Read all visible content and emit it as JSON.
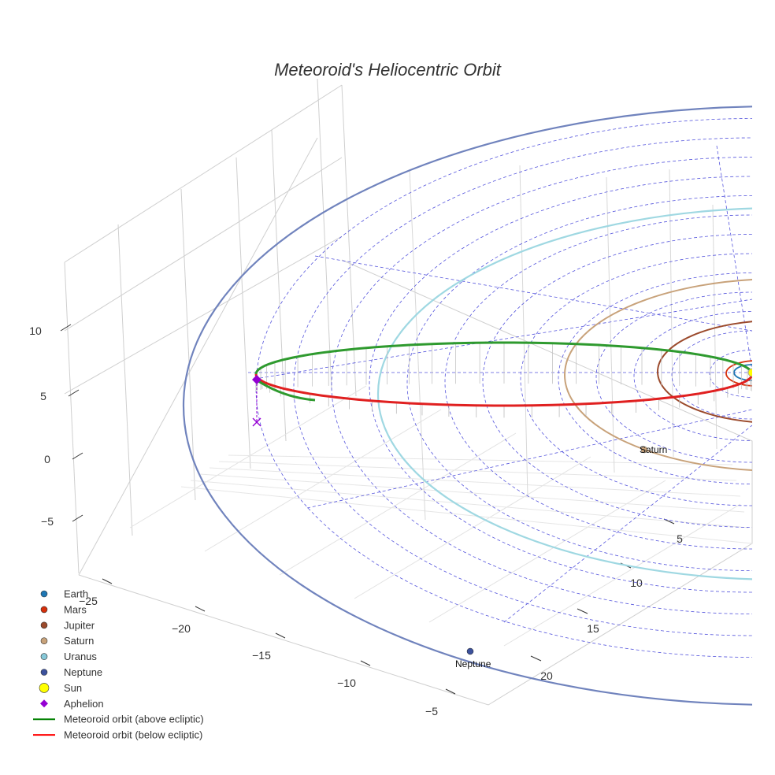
{
  "chart_data": {
    "type": "line",
    "title": "Meteoroid's Heliocentric Orbit",
    "axes": {
      "x": {
        "ticks": [
          -25,
          -20,
          -15,
          -10,
          -5
        ]
      },
      "y": {
        "ticks": [
          5,
          10,
          15,
          20
        ]
      },
      "z": {
        "ticks": [
          10,
          5,
          0,
          -5
        ]
      }
    },
    "grid": true,
    "legend_placement": "bottom-left",
    "legend": [
      {
        "label": "Earth",
        "marker": "circle",
        "color": "#1f77b4"
      },
      {
        "label": "Mars",
        "marker": "circle",
        "color": "#d62f0b"
      },
      {
        "label": "Jupiter",
        "marker": "circle",
        "color": "#9b4a2c"
      },
      {
        "label": "Saturn",
        "marker": "circle",
        "color": "#c8a27a"
      },
      {
        "label": "Uranus",
        "marker": "circle",
        "color": "#86c8d8"
      },
      {
        "label": "Neptune",
        "marker": "circle",
        "color": "#3c519c"
      },
      {
        "label": "Sun",
        "marker": "circle",
        "color": "#ffff00"
      },
      {
        "label": "Aphelion",
        "marker": "diamond",
        "color": "#9400d3"
      },
      {
        "label": "Meteoroid orbit (above ecliptic)",
        "marker": "line",
        "color": "#008000"
      },
      {
        "label": "Meteoroid orbit (below ecliptic)",
        "marker": "line",
        "color": "#ff0000"
      }
    ],
    "annotations": [
      {
        "text": "Saturn"
      },
      {
        "text": "Neptune"
      }
    ],
    "colors": {
      "earth": "#1f77b4",
      "mars": "#d62f0b",
      "jupiter": "#9b4a2c",
      "saturn": "#c8a27a",
      "uranus": "#9fd8e2",
      "neptune": "#7083bd",
      "sun": "#ffff00",
      "aphelion": "#9400d3",
      "above": "#2e9a2e",
      "below": "#e02020",
      "guide": "#5555dd"
    }
  }
}
